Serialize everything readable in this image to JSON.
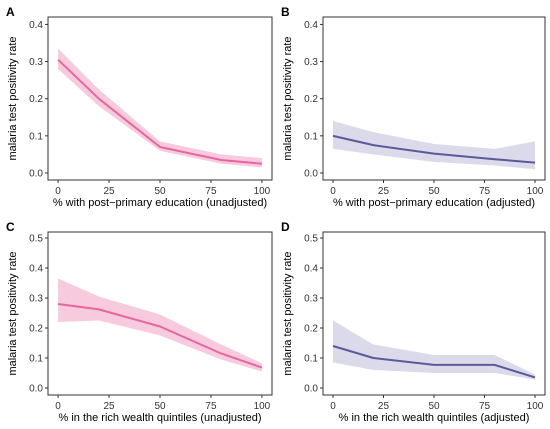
{
  "chart_data": [
    {
      "panel": "A",
      "type": "line",
      "xlabel": "% with post−primary education (unadjusted)",
      "ylabel": "malaria test positivity rate",
      "xlim": [
        0,
        100
      ],
      "ylim": [
        0,
        0.42
      ],
      "xticks": [
        0,
        25,
        50,
        75,
        100
      ],
      "xtick_labels": [
        "0",
        "25",
        "50",
        "75",
        "100"
      ],
      "yticks": [
        0.0,
        0.1,
        0.2,
        0.3,
        0.4
      ],
      "ytick_labels": [
        "0.0",
        "0.1",
        "0.2",
        "0.3",
        "0.4"
      ],
      "color": "#e8659f",
      "band_color": "#f4b9d1",
      "series": [
        {
          "x": [
            0,
            20,
            50,
            80,
            100
          ],
          "y": [
            0.305,
            0.2,
            0.07,
            0.035,
            0.025
          ],
          "lower": [
            0.28,
            0.18,
            0.06,
            0.025,
            0.015
          ],
          "upper": [
            0.335,
            0.225,
            0.085,
            0.05,
            0.04
          ]
        }
      ]
    },
    {
      "panel": "B",
      "type": "line",
      "xlabel": "% with post−primary education (adjusted)",
      "ylabel": "malaria test positivity rate",
      "xlim": [
        0,
        100
      ],
      "ylim": [
        0,
        0.42
      ],
      "xticks": [
        0,
        25,
        50,
        75,
        100
      ],
      "xtick_labels": [
        "0",
        "25",
        "50",
        "75",
        "100"
      ],
      "yticks": [
        0.0,
        0.1,
        0.2,
        0.3,
        0.4
      ],
      "ytick_labels": [
        "0.0",
        "0.1",
        "0.2",
        "0.3",
        "0.4"
      ],
      "color": "#5a5a9a",
      "band_color": "#cdcde3",
      "series": [
        {
          "x": [
            0,
            20,
            50,
            80,
            100
          ],
          "y": [
            0.1,
            0.075,
            0.052,
            0.037,
            0.028
          ],
          "lower": [
            0.065,
            0.05,
            0.03,
            0.02,
            0.01
          ],
          "upper": [
            0.14,
            0.11,
            0.078,
            0.065,
            0.085
          ]
        }
      ]
    },
    {
      "panel": "C",
      "type": "line",
      "xlabel": "% in the rich wealth quintiles (unadjusted)",
      "ylabel": "malaria test positivity rate",
      "xlim": [
        0,
        100
      ],
      "ylim": [
        0,
        0.52
      ],
      "xticks": [
        0,
        25,
        50,
        75,
        100
      ],
      "xtick_labels": [
        "0",
        "25",
        "50",
        "75",
        "100"
      ],
      "yticks": [
        0.0,
        0.1,
        0.2,
        0.3,
        0.4,
        0.5
      ],
      "ytick_labels": [
        "0.0",
        "0.1",
        "0.2",
        "0.3",
        "0.4",
        "0.5"
      ],
      "color": "#e8659f",
      "band_color": "#f4b9d1",
      "series": [
        {
          "x": [
            0,
            20,
            50,
            80,
            100
          ],
          "y": [
            0.28,
            0.262,
            0.205,
            0.115,
            0.068
          ],
          "lower": [
            0.22,
            0.225,
            0.175,
            0.095,
            0.055
          ],
          "upper": [
            0.365,
            0.305,
            0.245,
            0.145,
            0.082
          ]
        }
      ]
    },
    {
      "panel": "D",
      "type": "line",
      "xlabel": "% in the rich wealth quintiles (adjusted)",
      "ylabel": "malaria test positivity rate",
      "xlim": [
        0,
        100
      ],
      "ylim": [
        0,
        0.52
      ],
      "xticks": [
        0,
        25,
        50,
        75,
        100
      ],
      "xtick_labels": [
        "0",
        "25",
        "50",
        "75",
        "100"
      ],
      "yticks": [
        0.0,
        0.1,
        0.2,
        0.3,
        0.4,
        0.5
      ],
      "ytick_labels": [
        "0.0",
        "0.1",
        "0.2",
        "0.3",
        "0.4",
        "0.5"
      ],
      "color": "#5a5a9a",
      "band_color": "#cdcde3",
      "series": [
        {
          "x": [
            0,
            20,
            50,
            80,
            100
          ],
          "y": [
            0.14,
            0.1,
            0.077,
            0.077,
            0.035
          ],
          "lower": [
            0.085,
            0.06,
            0.05,
            0.05,
            0.028
          ],
          "upper": [
            0.225,
            0.145,
            0.11,
            0.11,
            0.045
          ]
        }
      ]
    }
  ]
}
